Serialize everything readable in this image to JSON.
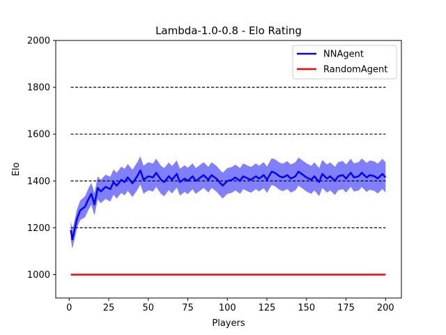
{
  "chart_data": {
    "type": "line",
    "title": "Lambda-1.0-0.8 - Elo Rating",
    "xlabel": "Players",
    "ylabel": "Elo",
    "xlim": [
      -8.5,
      210
    ],
    "ylim": [
      900,
      2000
    ],
    "xticks": [
      0,
      25,
      50,
      75,
      100,
      125,
      150,
      175,
      200
    ],
    "yticks": [
      1000,
      1200,
      1400,
      1600,
      1800,
      2000
    ],
    "reference_lines": {
      "style": "dashed",
      "color": "#000000",
      "x_range": [
        1,
        200
      ],
      "values": [
        1200,
        1400,
        1600,
        1800
      ]
    },
    "legend": {
      "position": "top-right"
    },
    "series": [
      {
        "name": "NNAgent",
        "color": "#0000ff",
        "band_color": "#8080ff",
        "x_range": [
          1,
          200
        ],
        "anchors": [
          [
            1,
            1190
          ],
          [
            2,
            1150
          ],
          [
            3,
            1180
          ],
          [
            5,
            1240
          ],
          [
            7,
            1275
          ],
          [
            10,
            1290
          ],
          [
            12,
            1320
          ],
          [
            14,
            1345
          ],
          [
            16,
            1300
          ],
          [
            18,
            1370
          ],
          [
            20,
            1355
          ],
          [
            23,
            1375
          ],
          [
            26,
            1365
          ],
          [
            28,
            1395
          ],
          [
            30,
            1380
          ],
          [
            33,
            1405
          ],
          [
            35,
            1395
          ],
          [
            37,
            1415
          ],
          [
            40,
            1390
          ],
          [
            43,
            1420
          ],
          [
            45,
            1445
          ],
          [
            47,
            1405
          ],
          [
            50,
            1420
          ],
          [
            53,
            1415
          ],
          [
            55,
            1435
          ],
          [
            58,
            1405
          ],
          [
            60,
            1395
          ],
          [
            63,
            1420
          ],
          [
            65,
            1405
          ],
          [
            68,
            1430
          ],
          [
            70,
            1395
          ],
          [
            73,
            1410
          ],
          [
            75,
            1400
          ],
          [
            78,
            1420
          ],
          [
            80,
            1400
          ],
          [
            83,
            1415
          ],
          [
            85,
            1425
          ],
          [
            88,
            1405
          ],
          [
            90,
            1425
          ],
          [
            93,
            1410
          ],
          [
            95,
            1395
          ],
          [
            97,
            1380
          ],
          [
            100,
            1400
          ],
          [
            103,
            1405
          ],
          [
            105,
            1415
          ],
          [
            108,
            1400
          ],
          [
            110,
            1420
          ],
          [
            113,
            1410
          ],
          [
            115,
            1405
          ],
          [
            118,
            1420
          ],
          [
            120,
            1410
          ],
          [
            123,
            1425
          ],
          [
            125,
            1405
          ],
          [
            128,
            1440
          ],
          [
            130,
            1435
          ],
          [
            133,
            1420
          ],
          [
            135,
            1415
          ],
          [
            138,
            1425
          ],
          [
            140,
            1410
          ],
          [
            143,
            1420
          ],
          [
            145,
            1440
          ],
          [
            148,
            1425
          ],
          [
            150,
            1415
          ],
          [
            153,
            1405
          ],
          [
            155,
            1420
          ],
          [
            158,
            1395
          ],
          [
            160,
            1430
          ],
          [
            163,
            1410
          ],
          [
            165,
            1420
          ],
          [
            168,
            1400
          ],
          [
            170,
            1420
          ],
          [
            173,
            1425
          ],
          [
            175,
            1410
          ],
          [
            178,
            1435
          ],
          [
            180,
            1415
          ],
          [
            183,
            1420
          ],
          [
            185,
            1435
          ],
          [
            188,
            1415
          ],
          [
            190,
            1425
          ],
          [
            193,
            1420
          ],
          [
            195,
            1410
          ],
          [
            198,
            1430
          ],
          [
            200,
            1415
          ]
        ],
        "band_halfwidth_anchors": [
          [
            1,
            40
          ],
          [
            5,
            40
          ],
          [
            10,
            45
          ],
          [
            20,
            50
          ],
          [
            30,
            55
          ],
          [
            45,
            60
          ],
          [
            60,
            60
          ],
          [
            80,
            55
          ],
          [
            100,
            55
          ],
          [
            120,
            55
          ],
          [
            140,
            60
          ],
          [
            160,
            60
          ],
          [
            180,
            60
          ],
          [
            200,
            65
          ]
        ]
      },
      {
        "name": "RandomAgent",
        "color": "#ff0000",
        "x_range": [
          1,
          200
        ],
        "anchors": [
          [
            1,
            1000
          ],
          [
            200,
            1000
          ]
        ]
      }
    ]
  }
}
